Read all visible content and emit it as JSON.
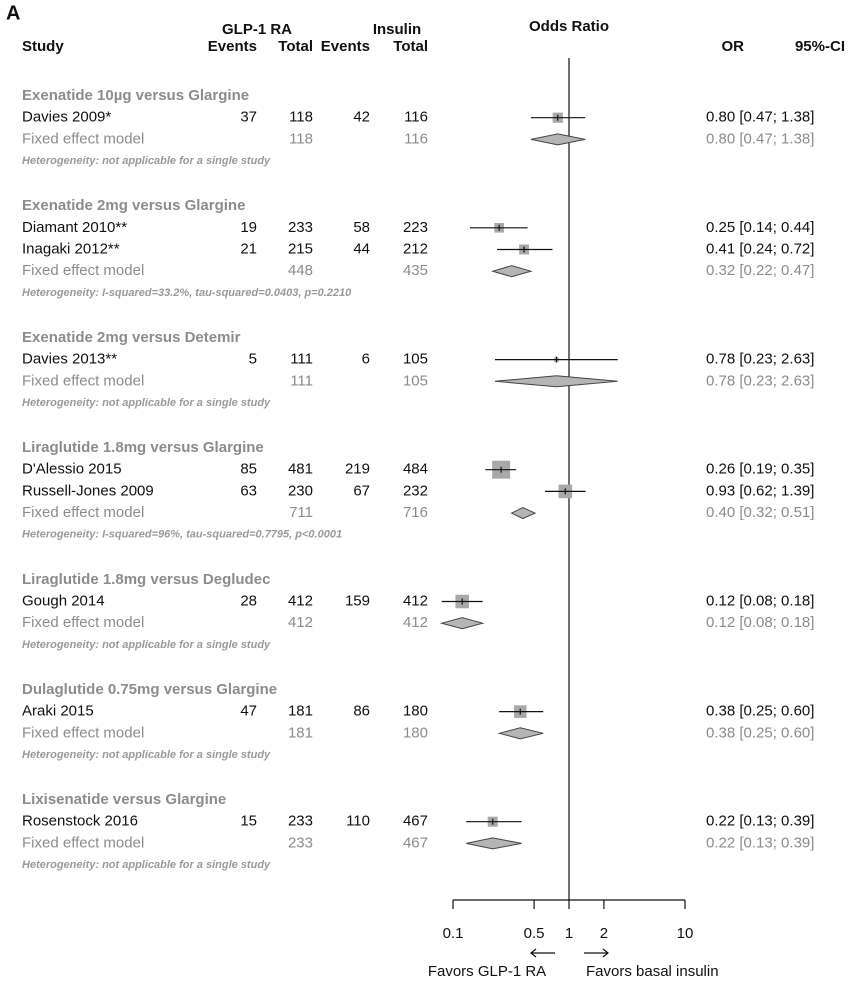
{
  "chart_data": {
    "type": "forest",
    "panel": "A",
    "title": "Odds Ratio",
    "columns": {
      "group_1": "GLP-1 RA",
      "group_2": "Insulin",
      "study": "Study",
      "events_1": "Events",
      "total_1": "Total",
      "events_2": "Events",
      "total_2": "Total",
      "or": "OR",
      "ci": "95%-CI"
    },
    "xlim": [
      0.1,
      10
    ],
    "xticks": [
      0.1,
      0.5,
      1,
      2,
      10
    ],
    "log": true,
    "favors_left": "Favors GLP-1 RA",
    "favors_right": "Favors basal insulin",
    "groups": [
      {
        "name": "Exenatide 10µg versus Glargine",
        "studies": [
          {
            "name": "Davies 2009*",
            "events_1": 37,
            "total_1": 118,
            "events_2": 42,
            "total_2": 116,
            "or": 0.8,
            "ci": [
              0.47,
              1.38
            ],
            "value_label": "0.80 [0.47; 1.38]"
          }
        ],
        "fixed": {
          "name": "Fixed effect model",
          "total_1": 118,
          "total_2": 116,
          "or": 0.8,
          "ci": [
            0.47,
            1.38
          ],
          "value_label": "0.80 [0.47; 1.38]"
        },
        "heterogeneity": "Heterogeneity: not applicable for a single study"
      },
      {
        "name": "Exenatide 2mg versus Glargine",
        "studies": [
          {
            "name": "Diamant 2010**",
            "events_1": 19,
            "total_1": 233,
            "events_2": 58,
            "total_2": 223,
            "or": 0.25,
            "ci": [
              0.14,
              0.44
            ],
            "value_label": "0.25 [0.14; 0.44]"
          },
          {
            "name": "Inagaki 2012**",
            "events_1": 21,
            "total_1": 215,
            "events_2": 44,
            "total_2": 212,
            "or": 0.41,
            "ci": [
              0.24,
              0.72
            ],
            "value_label": "0.41 [0.24; 0.72]"
          }
        ],
        "fixed": {
          "name": "Fixed effect model",
          "total_1": 448,
          "total_2": 435,
          "or": 0.32,
          "ci": [
            0.22,
            0.47
          ],
          "value_label": "0.32 [0.22; 0.47]"
        },
        "heterogeneity": "Heterogeneity: I-squared=33.2%, tau-squared=0.0403, p=0.2210"
      },
      {
        "name": "Exenatide 2mg versus Detemir",
        "studies": [
          {
            "name": "Davies 2013**",
            "events_1": 5,
            "total_1": 111,
            "events_2": 6,
            "total_2": 105,
            "or": 0.78,
            "ci": [
              0.23,
              2.63
            ],
            "value_label": "0.78 [0.23; 2.63]"
          }
        ],
        "fixed": {
          "name": "Fixed effect model",
          "total_1": 111,
          "total_2": 105,
          "or": 0.78,
          "ci": [
            0.23,
            2.63
          ],
          "value_label": "0.78 [0.23; 2.63]"
        },
        "heterogeneity": "Heterogeneity: not applicable for a single study"
      },
      {
        "name": "Liraglutide 1.8mg versus Glargine",
        "studies": [
          {
            "name": "D'Alessio 2015",
            "events_1": 85,
            "total_1": 481,
            "events_2": 219,
            "total_2": 484,
            "or": 0.26,
            "ci": [
              0.19,
              0.35
            ],
            "value_label": "0.26 [0.19; 0.35]"
          },
          {
            "name": "Russell-Jones 2009",
            "events_1": 63,
            "total_1": 230,
            "events_2": 67,
            "total_2": 232,
            "or": 0.93,
            "ci": [
              0.62,
              1.39
            ],
            "value_label": "0.93 [0.62; 1.39]"
          }
        ],
        "fixed": {
          "name": "Fixed effect model",
          "total_1": 711,
          "total_2": 716,
          "or": 0.4,
          "ci": [
            0.32,
            0.51
          ],
          "value_label": "0.40 [0.32; 0.51]"
        },
        "heterogeneity": "Heterogeneity: I-squared=96%, tau-squared=0.7795, p<0.0001"
      },
      {
        "name": "Liraglutide 1.8mg versus Degludec",
        "studies": [
          {
            "name": "Gough 2014",
            "events_1": 28,
            "total_1": 412,
            "events_2": 159,
            "total_2": 412,
            "or": 0.12,
            "ci": [
              0.08,
              0.18
            ],
            "value_label": "0.12 [0.08; 0.18]"
          }
        ],
        "fixed": {
          "name": "Fixed effect model",
          "total_1": 412,
          "total_2": 412,
          "or": 0.12,
          "ci": [
            0.08,
            0.18
          ],
          "value_label": "0.12 [0.08; 0.18]"
        },
        "heterogeneity": "Heterogeneity: not applicable for a single study"
      },
      {
        "name": "Dulaglutide 0.75mg versus Glargine",
        "studies": [
          {
            "name": "Araki 2015",
            "events_1": 47,
            "total_1": 181,
            "events_2": 86,
            "total_2": 180,
            "or": 0.38,
            "ci": [
              0.25,
              0.6
            ],
            "value_label": "0.38 [0.25; 0.60]"
          }
        ],
        "fixed": {
          "name": "Fixed effect model",
          "total_1": 181,
          "total_2": 180,
          "or": 0.38,
          "ci": [
            0.25,
            0.6
          ],
          "value_label": "0.38 [0.25; 0.60]"
        },
        "heterogeneity": "Heterogeneity: not applicable for a single study"
      },
      {
        "name": "Lixisenatide versus Glargine",
        "studies": [
          {
            "name": "Rosenstock 2016",
            "events_1": 15,
            "total_1": 233,
            "events_2": 110,
            "total_2": 467,
            "or": 0.22,
            "ci": [
              0.13,
              0.39
            ],
            "value_label": "0.22 [0.13; 0.39]"
          }
        ],
        "fixed": {
          "name": "Fixed effect model",
          "total_1": 233,
          "total_2": 467,
          "or": 0.22,
          "ci": [
            0.13,
            0.39
          ],
          "value_label": "0.22 [0.13; 0.39]"
        },
        "heterogeneity": "Heterogeneity: not applicable for a single study"
      }
    ]
  }
}
